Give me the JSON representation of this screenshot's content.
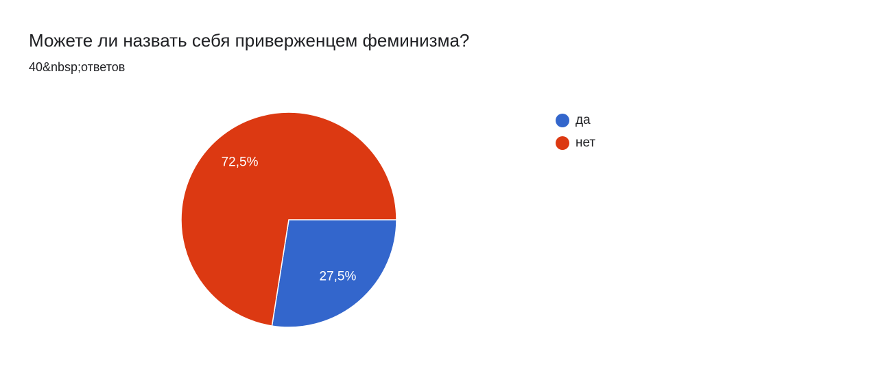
{
  "chart_data": {
    "type": "pie",
    "title": "Можете ли назвать себя приверженцем феминизма?",
    "subtitle": "40&nbsp;ответов",
    "categories": [
      "да",
      "нет"
    ],
    "values": [
      27.5,
      72.5
    ],
    "value_labels": [
      "27,5%",
      "72,5%"
    ],
    "colors": [
      "#3366cc",
      "#dc3912"
    ],
    "legend": "right"
  }
}
